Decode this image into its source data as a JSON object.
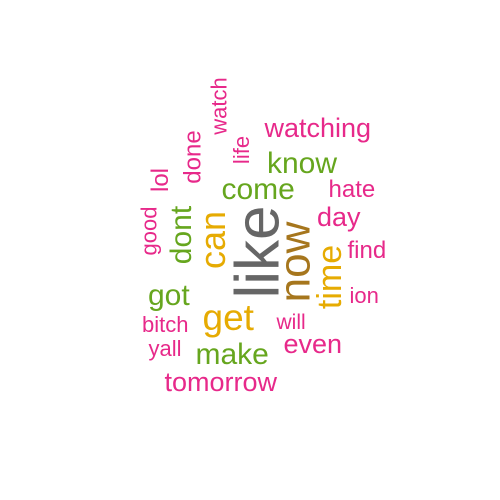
{
  "palette": {
    "magenta": "#e7298a",
    "green": "#66a61e",
    "gold": "#e6ab02",
    "brown": "#a6761d",
    "gray": "#666666"
  },
  "words": [
    {
      "id": "like",
      "text": "like",
      "color": "gray"
    },
    {
      "id": "now",
      "text": "now",
      "color": "brown"
    },
    {
      "id": "can",
      "text": "can",
      "color": "gold"
    },
    {
      "id": "get",
      "text": "get",
      "color": "gold"
    },
    {
      "id": "time",
      "text": "time",
      "color": "gold"
    },
    {
      "id": "come",
      "text": "come",
      "color": "green"
    },
    {
      "id": "know",
      "text": "know",
      "color": "green"
    },
    {
      "id": "got",
      "text": "got",
      "color": "green"
    },
    {
      "id": "make",
      "text": "make",
      "color": "green"
    },
    {
      "id": "dont",
      "text": "dont",
      "color": "green"
    },
    {
      "id": "watching",
      "text": "watching",
      "color": "magenta"
    },
    {
      "id": "day",
      "text": "day",
      "color": "magenta"
    },
    {
      "id": "even",
      "text": "even",
      "color": "magenta"
    },
    {
      "id": "tomorrow",
      "text": "tomorrow",
      "color": "magenta"
    },
    {
      "id": "done",
      "text": "done",
      "color": "magenta"
    },
    {
      "id": "lol",
      "text": "lol",
      "color": "magenta"
    },
    {
      "id": "life",
      "text": "life",
      "color": "magenta"
    },
    {
      "id": "watch",
      "text": "watch",
      "color": "magenta"
    },
    {
      "id": "hate",
      "text": "hate",
      "color": "magenta"
    },
    {
      "id": "find",
      "text": "find",
      "color": "magenta"
    },
    {
      "id": "ion",
      "text": "ion",
      "color": "magenta"
    },
    {
      "id": "will",
      "text": "will",
      "color": "magenta"
    },
    {
      "id": "good",
      "text": "good",
      "color": "magenta"
    },
    {
      "id": "bitch",
      "text": "bitch",
      "color": "magenta"
    },
    {
      "id": "yall",
      "text": "yall",
      "color": "magenta"
    }
  ]
}
